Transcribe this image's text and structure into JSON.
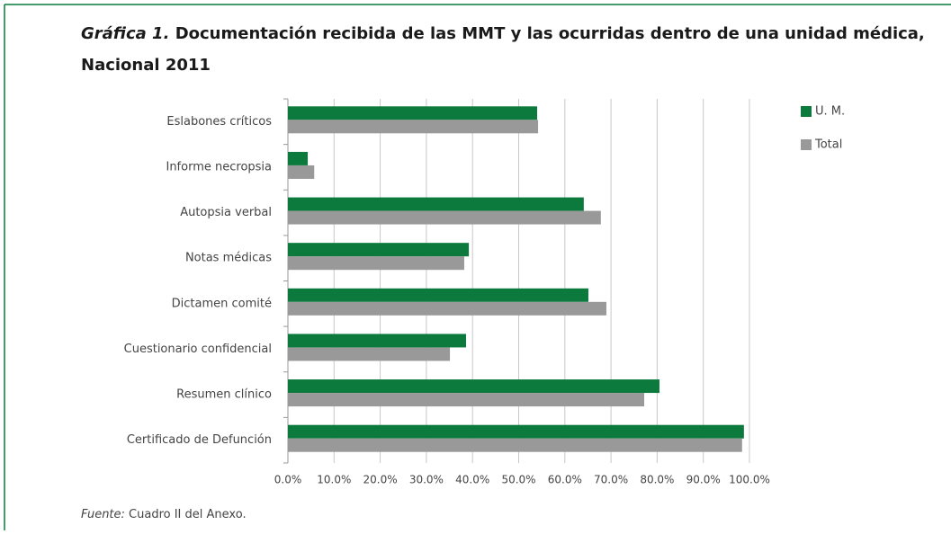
{
  "chart_data": {
    "type": "hbar",
    "title_label": "Gráfica 1.",
    "title": "Documentación recibida de las MMT y las ocurridas dentro de una unidad médica,",
    "title_line2": "Nacional 2011",
    "categories": [
      "Eslabones críticos",
      "Informe necropsia",
      "Autopsia verbal",
      "Notas médicas",
      "Dictamen comité",
      "Cuestionario confidencial",
      "Resumen clínico",
      "Certificado de Defunción"
    ],
    "series": [
      {
        "name": "U. M.",
        "color": "#0b7a3c",
        "values": [
          54.0,
          4.3,
          64.1,
          39.2,
          65.1,
          38.6,
          80.5,
          98.8
        ]
      },
      {
        "name": "Total",
        "color": "#999999",
        "values": [
          54.2,
          5.7,
          67.8,
          38.2,
          69.0,
          35.1,
          77.2,
          98.4
        ]
      }
    ],
    "xlim": [
      0,
      100
    ],
    "xticks": [
      {
        "value": 0,
        "label": "0.0%"
      },
      {
        "value": 10,
        "label": "10.0%"
      },
      {
        "value": 20,
        "label": "20.0%"
      },
      {
        "value": 30,
        "label": "30.0%"
      },
      {
        "value": 40,
        "label": "40.0%"
      },
      {
        "value": 50,
        "label": "50.0%"
      },
      {
        "value": 60,
        "label": "60.0%"
      },
      {
        "value": 70,
        "label": "70.0%"
      },
      {
        "value": 80,
        "label": "80.0%"
      },
      {
        "value": 90,
        "label": "90.0%"
      },
      {
        "value": 100,
        "label": "100.0%"
      }
    ],
    "grid": true,
    "legend": "right",
    "source_label": "Fuente:",
    "source": "Cuadro II del Anexo."
  }
}
